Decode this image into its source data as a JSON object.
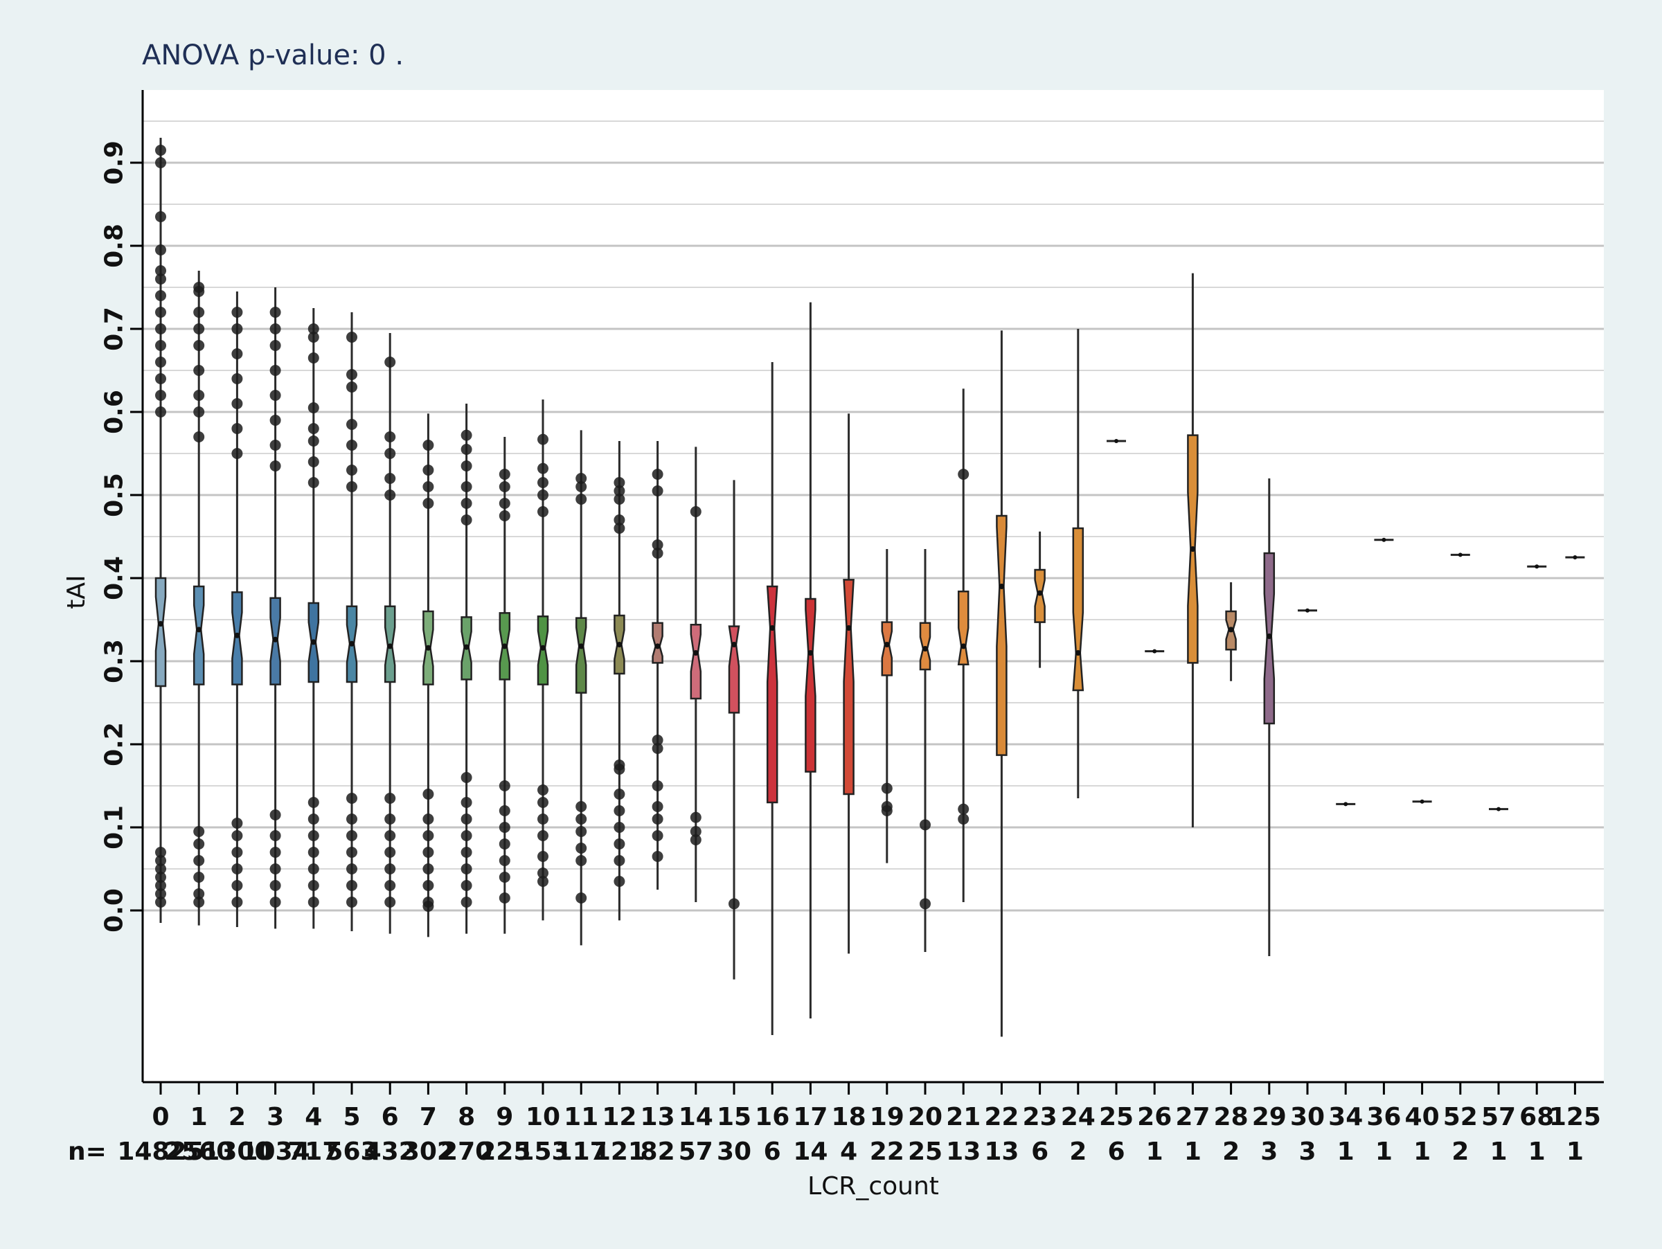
{
  "chart_data": {
    "type": "box",
    "title": "ANOVA p-value:  0 .",
    "xlabel": "LCR_count",
    "ylabel": "tAI",
    "ylim": [
      -0.2,
      0.98
    ],
    "yticks": [
      "0.0",
      "0.1",
      "0.2",
      "0.3",
      "0.4",
      "0.5",
      "0.6",
      "0.7",
      "0.8",
      "0.9"
    ],
    "grid": true,
    "n_prefix": "n=",
    "categories": [
      "0",
      "1",
      "2",
      "3",
      "4",
      "5",
      "6",
      "7",
      "8",
      "9",
      "10",
      "11",
      "12",
      "13",
      "14",
      "15",
      "16",
      "17",
      "18",
      "19",
      "20",
      "21",
      "22",
      "23",
      "24",
      "25",
      "26",
      "27",
      "28",
      "29",
      "30",
      "34",
      "36",
      "40",
      "52",
      "57",
      "68",
      "125"
    ],
    "n_labels": [
      "14825",
      "2560",
      "1300",
      "1034",
      "717",
      "563",
      "432",
      "302",
      "270",
      "225",
      "153",
      "117",
      "121",
      "82",
      "57",
      "30",
      "6",
      "14",
      "4",
      "22",
      "25",
      "13",
      "13",
      "6",
      "2",
      "6",
      "1",
      "1",
      "2",
      "3",
      "3",
      "1",
      "1",
      "1",
      "2",
      "1",
      "1",
      "1"
    ],
    "series": [
      {
        "q1": 0.27,
        "med": 0.345,
        "q3": 0.4,
        "wlo": -0.015,
        "whi": 0.93,
        "outliers": [
          0.01,
          0.02,
          0.03,
          0.04,
          0.05,
          0.06,
          0.07,
          0.6,
          0.62,
          0.64,
          0.66,
          0.68,
          0.7,
          0.72,
          0.74,
          0.76,
          0.77,
          0.795,
          0.835,
          0.9,
          0.915
        ]
      },
      {
        "q1": 0.272,
        "med": 0.338,
        "q3": 0.39,
        "wlo": -0.018,
        "whi": 0.77,
        "outliers": [
          0.01,
          0.02,
          0.04,
          0.06,
          0.08,
          0.095,
          0.57,
          0.6,
          0.62,
          0.65,
          0.68,
          0.7,
          0.72,
          0.745,
          0.75
        ]
      },
      {
        "q1": 0.272,
        "med": 0.331,
        "q3": 0.383,
        "wlo": -0.02,
        "whi": 0.745,
        "outliers": [
          0.01,
          0.03,
          0.05,
          0.07,
          0.09,
          0.105,
          0.55,
          0.58,
          0.61,
          0.64,
          0.67,
          0.7,
          0.72
        ]
      },
      {
        "q1": 0.272,
        "med": 0.326,
        "q3": 0.376,
        "wlo": -0.022,
        "whi": 0.75,
        "outliers": [
          0.01,
          0.03,
          0.05,
          0.07,
          0.09,
          0.115,
          0.535,
          0.56,
          0.59,
          0.62,
          0.65,
          0.68,
          0.7,
          0.72
        ]
      },
      {
        "q1": 0.275,
        "med": 0.323,
        "q3": 0.37,
        "wlo": -0.022,
        "whi": 0.725,
        "outliers": [
          0.01,
          0.03,
          0.05,
          0.07,
          0.09,
          0.11,
          0.13,
          0.515,
          0.54,
          0.565,
          0.58,
          0.605,
          0.665,
          0.69,
          0.7
        ]
      },
      {
        "q1": 0.275,
        "med": 0.321,
        "q3": 0.366,
        "wlo": -0.025,
        "whi": 0.72,
        "outliers": [
          0.01,
          0.03,
          0.05,
          0.07,
          0.09,
          0.11,
          0.135,
          0.51,
          0.53,
          0.56,
          0.585,
          0.63,
          0.645,
          0.69
        ]
      },
      {
        "q1": 0.275,
        "med": 0.318,
        "q3": 0.366,
        "wlo": -0.028,
        "whi": 0.695,
        "outliers": [
          0.01,
          0.03,
          0.05,
          0.07,
          0.09,
          0.11,
          0.135,
          0.5,
          0.52,
          0.55,
          0.57,
          0.66
        ]
      },
      {
        "q1": 0.272,
        "med": 0.316,
        "q3": 0.36,
        "wlo": -0.032,
        "whi": 0.598,
        "outliers": [
          0.005,
          0.01,
          0.03,
          0.05,
          0.07,
          0.09,
          0.11,
          0.14,
          0.49,
          0.51,
          0.53,
          0.56
        ]
      },
      {
        "q1": 0.278,
        "med": 0.317,
        "q3": 0.353,
        "wlo": -0.028,
        "whi": 0.61,
        "outliers": [
          0.01,
          0.03,
          0.05,
          0.07,
          0.09,
          0.11,
          0.13,
          0.16,
          0.47,
          0.49,
          0.51,
          0.535,
          0.555,
          0.572
        ]
      },
      {
        "q1": 0.278,
        "med": 0.318,
        "q3": 0.358,
        "wlo": -0.028,
        "whi": 0.57,
        "outliers": [
          0.015,
          0.04,
          0.06,
          0.08,
          0.1,
          0.12,
          0.15,
          0.475,
          0.49,
          0.51,
          0.525
        ]
      },
      {
        "q1": 0.272,
        "med": 0.316,
        "q3": 0.354,
        "wlo": -0.012,
        "whi": 0.615,
        "outliers": [
          0.035,
          0.045,
          0.065,
          0.09,
          0.11,
          0.13,
          0.145,
          0.48,
          0.5,
          0.515,
          0.532,
          0.567
        ]
      },
      {
        "q1": 0.262,
        "med": 0.318,
        "q3": 0.352,
        "wlo": -0.042,
        "whi": 0.578,
        "outliers": [
          0.015,
          0.06,
          0.075,
          0.095,
          0.11,
          0.125,
          0.495,
          0.51,
          0.52
        ]
      },
      {
        "q1": 0.285,
        "med": 0.32,
        "q3": 0.355,
        "wlo": -0.012,
        "whi": 0.565,
        "outliers": [
          0.035,
          0.06,
          0.08,
          0.1,
          0.12,
          0.14,
          0.17,
          0.175,
          0.46,
          0.47,
          0.495,
          0.505,
          0.515
        ]
      },
      {
        "q1": 0.298,
        "med": 0.318,
        "q3": 0.346,
        "wlo": 0.025,
        "whi": 0.565,
        "outliers": [
          0.065,
          0.09,
          0.11,
          0.125,
          0.15,
          0.195,
          0.205,
          0.43,
          0.44,
          0.505,
          0.525
        ]
      },
      {
        "q1": 0.255,
        "med": 0.31,
        "q3": 0.344,
        "wlo": 0.01,
        "whi": 0.558,
        "outliers": [
          0.085,
          0.095,
          0.112,
          0.48
        ]
      },
      {
        "q1": 0.238,
        "med": 0.32,
        "q3": 0.342,
        "wlo": -0.083,
        "whi": 0.518,
        "outliers": [
          0.008
        ]
      },
      {
        "q1": 0.13,
        "med": 0.34,
        "q3": 0.39,
        "wlo": -0.15,
        "whi": 0.66,
        "outliers": []
      },
      {
        "q1": 0.167,
        "med": 0.31,
        "q3": 0.375,
        "wlo": -0.13,
        "whi": 0.732,
        "outliers": []
      },
      {
        "q1": 0.14,
        "med": 0.34,
        "q3": 0.398,
        "wlo": -0.052,
        "whi": 0.598,
        "outliers": []
      },
      {
        "q1": 0.283,
        "med": 0.32,
        "q3": 0.347,
        "wlo": 0.057,
        "whi": 0.435,
        "outliers": [
          0.12,
          0.125,
          0.147
        ]
      },
      {
        "q1": 0.29,
        "med": 0.315,
        "q3": 0.346,
        "wlo": -0.05,
        "whi": 0.435,
        "outliers": [
          0.008,
          0.103
        ]
      },
      {
        "q1": 0.296,
        "med": 0.318,
        "q3": 0.384,
        "wlo": 0.01,
        "whi": 0.628,
        "outliers": [
          0.11,
          0.122,
          0.525
        ]
      },
      {
        "q1": 0.187,
        "med": 0.39,
        "q3": 0.475,
        "wlo": -0.152,
        "whi": 0.698,
        "outliers": []
      },
      {
        "q1": 0.347,
        "med": 0.382,
        "q3": 0.41,
        "wlo": 0.292,
        "whi": 0.456,
        "outliers": []
      },
      {
        "q1": 0.265,
        "med": 0.31,
        "q3": 0.46,
        "wlo": 0.135,
        "whi": 0.7,
        "outliers": []
      },
      {
        "q1": 0.565,
        "med": 0.565,
        "q3": 0.565,
        "wlo": 0.565,
        "whi": 0.565,
        "outliers": []
      },
      {
        "q1": 0.312,
        "med": 0.312,
        "q3": 0.312,
        "wlo": 0.312,
        "whi": 0.312,
        "outliers": []
      },
      {
        "q1": 0.298,
        "med": 0.435,
        "q3": 0.572,
        "wlo": 0.1,
        "whi": 0.767,
        "outliers": []
      },
      {
        "q1": 0.314,
        "med": 0.338,
        "q3": 0.36,
        "wlo": 0.276,
        "whi": 0.395,
        "outliers": []
      },
      {
        "q1": 0.225,
        "med": 0.33,
        "q3": 0.43,
        "wlo": -0.055,
        "whi": 0.52,
        "outliers": []
      },
      {
        "q1": 0.361,
        "med": 0.361,
        "q3": 0.361,
        "wlo": 0.361,
        "whi": 0.361,
        "outliers": []
      },
      {
        "q1": 0.128,
        "med": 0.128,
        "q3": 0.128,
        "wlo": 0.128,
        "whi": 0.128,
        "outliers": []
      },
      {
        "q1": 0.446,
        "med": 0.446,
        "q3": 0.446,
        "wlo": 0.446,
        "whi": 0.446,
        "outliers": []
      },
      {
        "q1": 0.13,
        "med": 0.131,
        "q3": 0.132,
        "wlo": 0.13,
        "whi": 0.132,
        "outliers": []
      },
      {
        "q1": 0.428,
        "med": 0.428,
        "q3": 0.428,
        "wlo": 0.428,
        "whi": 0.428,
        "outliers": []
      },
      {
        "q1": 0.122,
        "med": 0.122,
        "q3": 0.122,
        "wlo": 0.122,
        "whi": 0.122,
        "outliers": []
      },
      {
        "q1": 0.414,
        "med": 0.414,
        "q3": 0.414,
        "wlo": 0.414,
        "whi": 0.414,
        "outliers": []
      },
      {
        "q1": 0.425,
        "med": 0.425,
        "q3": 0.425,
        "wlo": 0.425,
        "whi": 0.425,
        "outliers": []
      }
    ],
    "colors": [
      "#87a9bf",
      "#5c8fb3",
      "#4a7fab",
      "#4a7aa6",
      "#3f74a0",
      "#4a86a4",
      "#6b9f8e",
      "#7dad7a",
      "#6aa26a",
      "#58994f",
      "#4f9344",
      "#5e8848",
      "#8c8a54",
      "#b27c72",
      "#cf6c7a",
      "#d1515e",
      "#cc333d",
      "#cc3336",
      "#d24a37",
      "#db7842",
      "#e08b40",
      "#df8c3d",
      "#d98a38",
      "#d98f3b",
      "#d98e38",
      "#999999",
      "#999999",
      "#d98e38",
      "#b98a66",
      "#8e6a8a",
      "#999999",
      "#999999",
      "#999999",
      "#999999",
      "#999999",
      "#999999",
      "#999999",
      "#999999"
    ]
  }
}
